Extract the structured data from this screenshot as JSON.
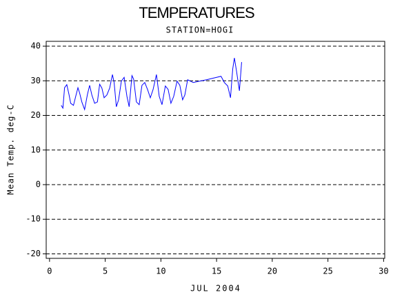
{
  "chart_data": {
    "type": "line",
    "title": "TEMPERATURES",
    "subtitle": "STATION=HOGI",
    "x_label": "JUL 2004",
    "y_label": "Mean Temp. deg-C",
    "x": [
      1.05,
      1.2,
      1.35,
      1.55,
      1.75,
      1.9,
      2.15,
      2.35,
      2.55,
      2.7,
      2.9,
      3.15,
      3.4,
      3.6,
      3.8,
      4.05,
      4.3,
      4.5,
      4.7,
      4.9,
      5.15,
      5.4,
      5.65,
      5.8,
      6.0,
      6.2,
      6.45,
      6.7,
      6.95,
      7.15,
      7.4,
      7.55,
      7.8,
      8.05,
      8.3,
      8.55,
      8.8,
      9.05,
      9.3,
      9.6,
      9.85,
      10.1,
      10.4,
      10.65,
      10.9,
      11.15,
      11.45,
      11.7,
      11.95,
      12.15,
      12.4,
      12.9,
      14.1,
      15.4,
      15.7,
      16.0,
      16.25,
      16.45,
      16.6,
      16.8,
      17.05,
      17.25
    ],
    "series": [
      {
        "name": "Mean Temp.",
        "color": "#0000ff",
        "values": [
          22.9,
          22.1,
          28,
          28.9,
          26,
          23.5,
          22.9,
          25.5,
          28,
          26.5,
          23.9,
          21.7,
          26,
          28.7,
          25.9,
          23.5,
          23.9,
          29,
          27.9,
          25.1,
          25.9,
          27.9,
          31.8,
          29.5,
          22.5,
          24.5,
          29.9,
          31,
          25.5,
          22.5,
          31.5,
          30.5,
          23.9,
          23.1,
          28.7,
          29.5,
          27.5,
          25.1,
          27.5,
          31.8,
          25.5,
          23.1,
          28.5,
          27.5,
          23.5,
          25.5,
          29.9,
          28.7,
          24.5,
          25.9,
          30.3,
          29.5,
          30.3,
          31.3,
          29.5,
          28.5,
          25.1,
          33.4,
          36.6,
          32.6,
          27.1,
          35.4
        ]
      }
    ],
    "xlim": [
      -0.3,
      30.1
    ],
    "ylim": [
      -21.3,
      41.4
    ],
    "xticks": [
      0,
      5,
      10,
      15,
      20,
      25,
      30
    ],
    "yticks": [
      -20,
      -10,
      0,
      10,
      20,
      30,
      40
    ],
    "grid": true
  }
}
